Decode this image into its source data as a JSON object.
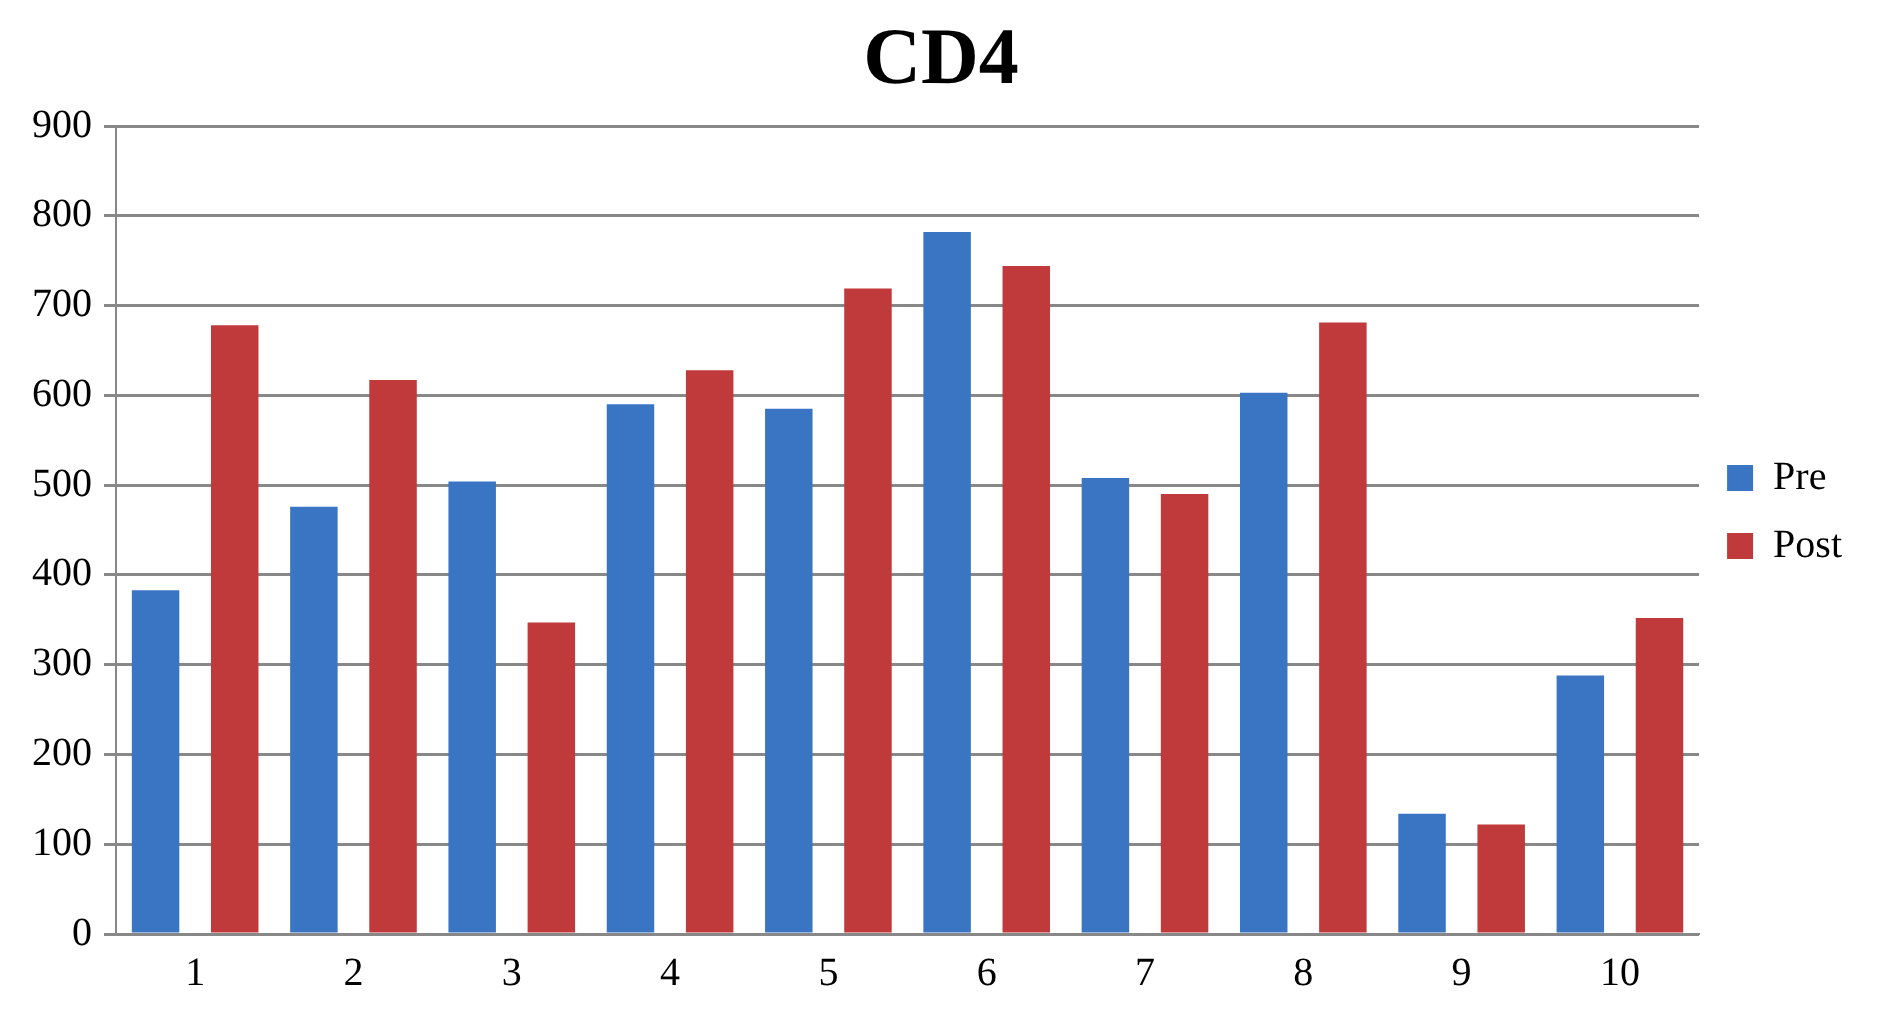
{
  "chart_data": {
    "type": "bar",
    "title": "CD4",
    "categories": [
      "1",
      "2",
      "3",
      "4",
      "5",
      "6",
      "7",
      "8",
      "9",
      "10"
    ],
    "series": [
      {
        "name": "Pre",
        "color": "#3a75c4",
        "values": [
          383,
          476,
          504,
          590,
          585,
          782,
          508,
          603,
          134,
          288
        ]
      },
      {
        "name": "Post",
        "color": "#c0393b",
        "values": [
          678,
          617,
          347,
          628,
          719,
          744,
          490,
          681,
          122,
          352
        ]
      }
    ],
    "ylim": [
      0,
      900
    ],
    "yticks": [
      0,
      100,
      200,
      300,
      400,
      500,
      600,
      700,
      800,
      900
    ],
    "grid": "y",
    "legend": "right"
  }
}
